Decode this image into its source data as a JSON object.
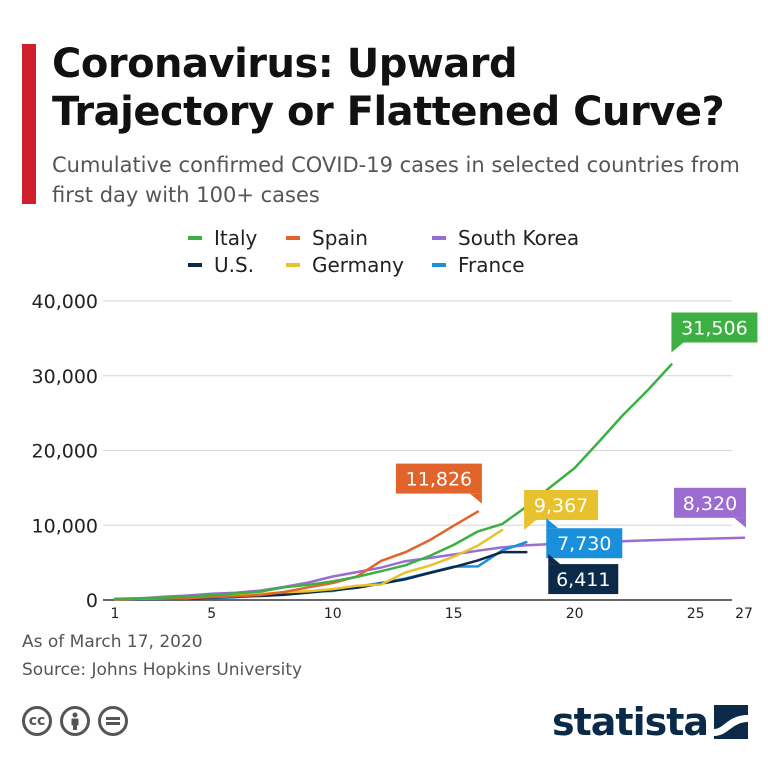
{
  "header": {
    "title": "Coronavirus: Upward Trajectory or Flattened Curve?",
    "subtitle": "Cumulative confirmed COVID-19 cases in selected countries from first day with 100+ cases"
  },
  "footer": {
    "as_of": "As of March 17, 2020",
    "source": "Source: Johns Hopkins University",
    "brand": "statista"
  },
  "license_icons": [
    "cc-icon",
    "attribution-icon",
    "no-derivatives-icon"
  ],
  "chart_data": {
    "type": "line",
    "xlim": [
      1,
      27
    ],
    "ylim": [
      0,
      40000
    ],
    "x_ticks": [
      1,
      5,
      10,
      15,
      20,
      25,
      27
    ],
    "y_ticks": [
      0,
      10000,
      20000,
      30000,
      40000
    ],
    "y_tick_labels": [
      "0",
      "10,000",
      "20,000",
      "30,000",
      "40,000"
    ],
    "grid": true,
    "legend_position": "top",
    "series": [
      {
        "name": "Italy",
        "color": "#3cb043",
        "x": [
          1,
          2,
          3,
          4,
          5,
          6,
          7,
          8,
          9,
          10,
          11,
          12,
          13,
          14,
          15,
          16,
          17,
          18,
          19,
          20,
          21,
          22,
          23,
          24
        ],
        "values": [
          155,
          229,
          322,
          453,
          655,
          888,
          1128,
          1694,
          2036,
          2502,
          3089,
          3858,
          4636,
          5883,
          7375,
          9172,
          10149,
          12462,
          15113,
          17660,
          21157,
          24747,
          27980,
          31506
        ],
        "end_label": "31,506"
      },
      {
        "name": "U.S.",
        "color": "#0b2a4a",
        "x": [
          1,
          2,
          3,
          4,
          5,
          6,
          7,
          8,
          9,
          10,
          11,
          12,
          13,
          14,
          15,
          16,
          17,
          18
        ],
        "values": [
          100,
          124,
          158,
          221,
          319,
          435,
          541,
          704,
          994,
          1301,
          1630,
          2183,
          2770,
          3613,
          4400,
          5300,
          6411,
          6411
        ],
        "end_label": "6,411"
      },
      {
        "name": "Spain",
        "color": "#e3642b",
        "x": [
          1,
          2,
          3,
          4,
          5,
          6,
          7,
          8,
          9,
          10,
          11,
          12,
          13,
          14,
          15,
          16
        ],
        "values": [
          120,
          165,
          222,
          259,
          400,
          500,
          673,
          1073,
          1695,
          2277,
          3146,
          5232,
          6391,
          7988,
          9942,
          11826
        ],
        "end_label": "11,826"
      },
      {
        "name": "Germany",
        "color": "#e8c22e",
        "x": [
          1,
          2,
          3,
          4,
          5,
          6,
          7,
          8,
          9,
          10,
          11,
          12,
          13,
          14,
          15,
          16,
          17
        ],
        "values": [
          130,
          159,
          196,
          262,
          482,
          670,
          799,
          1040,
          1176,
          1457,
          1908,
          2078,
          3675,
          4585,
          5795,
          7272,
          9367
        ],
        "end_label": "9,367"
      },
      {
        "name": "South Korea",
        "color": "#9b6dd1",
        "x": [
          1,
          2,
          3,
          4,
          5,
          6,
          7,
          8,
          9,
          10,
          11,
          12,
          13,
          14,
          15,
          16,
          17,
          18,
          19,
          20,
          21,
          22,
          23,
          24,
          25,
          26,
          27
        ],
        "values": [
          104,
          204,
          433,
          602,
          833,
          977,
          1261,
          1766,
          2337,
          3150,
          3736,
          4335,
          5186,
          5621,
          6088,
          6593,
          7041,
          7313,
          7478,
          7513,
          7755,
          7869,
          7979,
          8086,
          8162,
          8236,
          8320
        ],
        "end_label": "8,320"
      },
      {
        "name": "France",
        "color": "#1a8fdb",
        "x": [
          1,
          2,
          3,
          4,
          5,
          6,
          7,
          8,
          9,
          10,
          11,
          12,
          13,
          14,
          15,
          16,
          17,
          18
        ],
        "values": [
          100,
          130,
          191,
          204,
          285,
          377,
          653,
          949,
          1126,
          1209,
          1784,
          2281,
          2876,
          3661,
          4469,
          4499,
          6633,
          7730
        ],
        "end_label": "7,730"
      }
    ]
  }
}
